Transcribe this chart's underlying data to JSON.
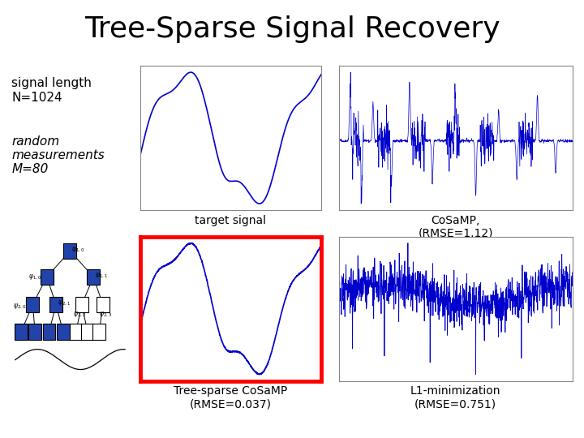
{
  "title": "Tree-Sparse Signal Recovery",
  "title_fontsize": 26,
  "text_signal_length": "signal length\nN=1024",
  "text_measurements": "random\nmeasurements\nM=80",
  "label_target": "target signal",
  "label_cosamp": "CoSaMP,\n(RMSE=1.12)",
  "label_tree": "Tree-sparse CoSaMP\n(RMSE=0.037)",
  "label_l1": "L1-minimization\n(RMSE=0.751)",
  "signal_color": "#0000cc",
  "bg_color": "#ffffff",
  "N": 1024,
  "M": 80,
  "label_fontsize": 10,
  "info_fontsize": 11
}
